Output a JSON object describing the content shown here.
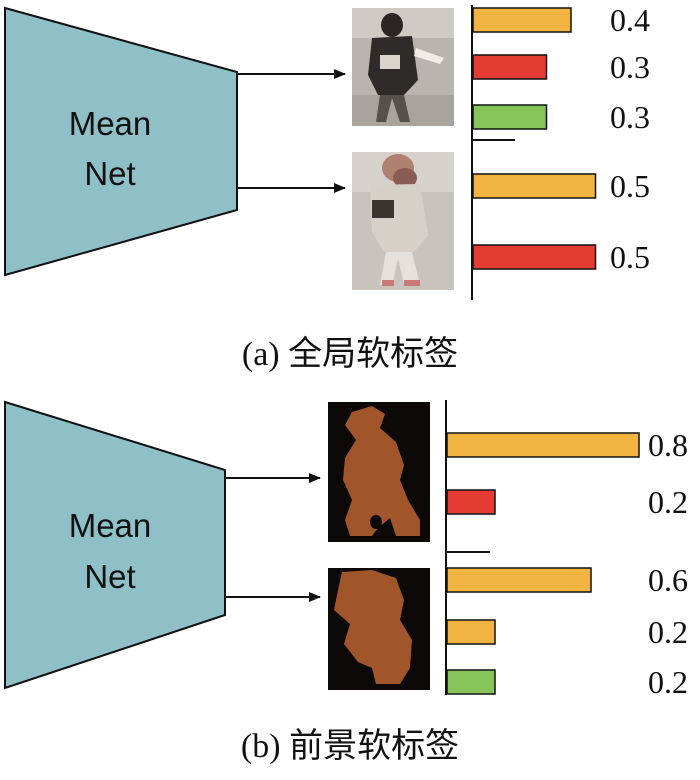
{
  "panels": [
    {
      "net_label_line1": "Mean",
      "net_label_line2": "Net",
      "caption": "(a) 全局软标签",
      "rows": [
        {
          "image_kind": "person-photo",
          "bars": [
            {
              "value": 0.4,
              "label": "0.4",
              "color": "#f2b441"
            },
            {
              "value": 0.3,
              "label": "0.3",
              "color": "#e63b33"
            },
            {
              "value": 0.3,
              "label": "0.3",
              "color": "#86c45a"
            }
          ]
        },
        {
          "image_kind": "person-photo",
          "bars": [
            {
              "value": 0.5,
              "label": "0.5",
              "color": "#f2b441"
            },
            {
              "value": 0.5,
              "label": "0.5",
              "color": "#e63b33"
            }
          ]
        }
      ]
    },
    {
      "net_label_line1": "Mean",
      "net_label_line2": "Net",
      "caption": "(b) 前景软标签",
      "rows": [
        {
          "image_kind": "foreground-mask",
          "bars": [
            {
              "value": 0.8,
              "label": "0.8",
              "color": "#f2b441"
            },
            {
              "value": 0.2,
              "label": "0.2",
              "color": "#e63b33"
            }
          ]
        },
        {
          "image_kind": "foreground-mask",
          "bars": [
            {
              "value": 0.6,
              "label": "0.6",
              "color": "#f2b441"
            },
            {
              "value": 0.2,
              "label": "0.2",
              "color": "#f2b441"
            },
            {
              "value": 0.2,
              "label": "0.2",
              "color": "#86c45a"
            }
          ]
        }
      ]
    }
  ],
  "colors": {
    "net_fill": "#8fc0c8",
    "mask_background": "#0d0908",
    "mask_body": "#a0562a"
  }
}
